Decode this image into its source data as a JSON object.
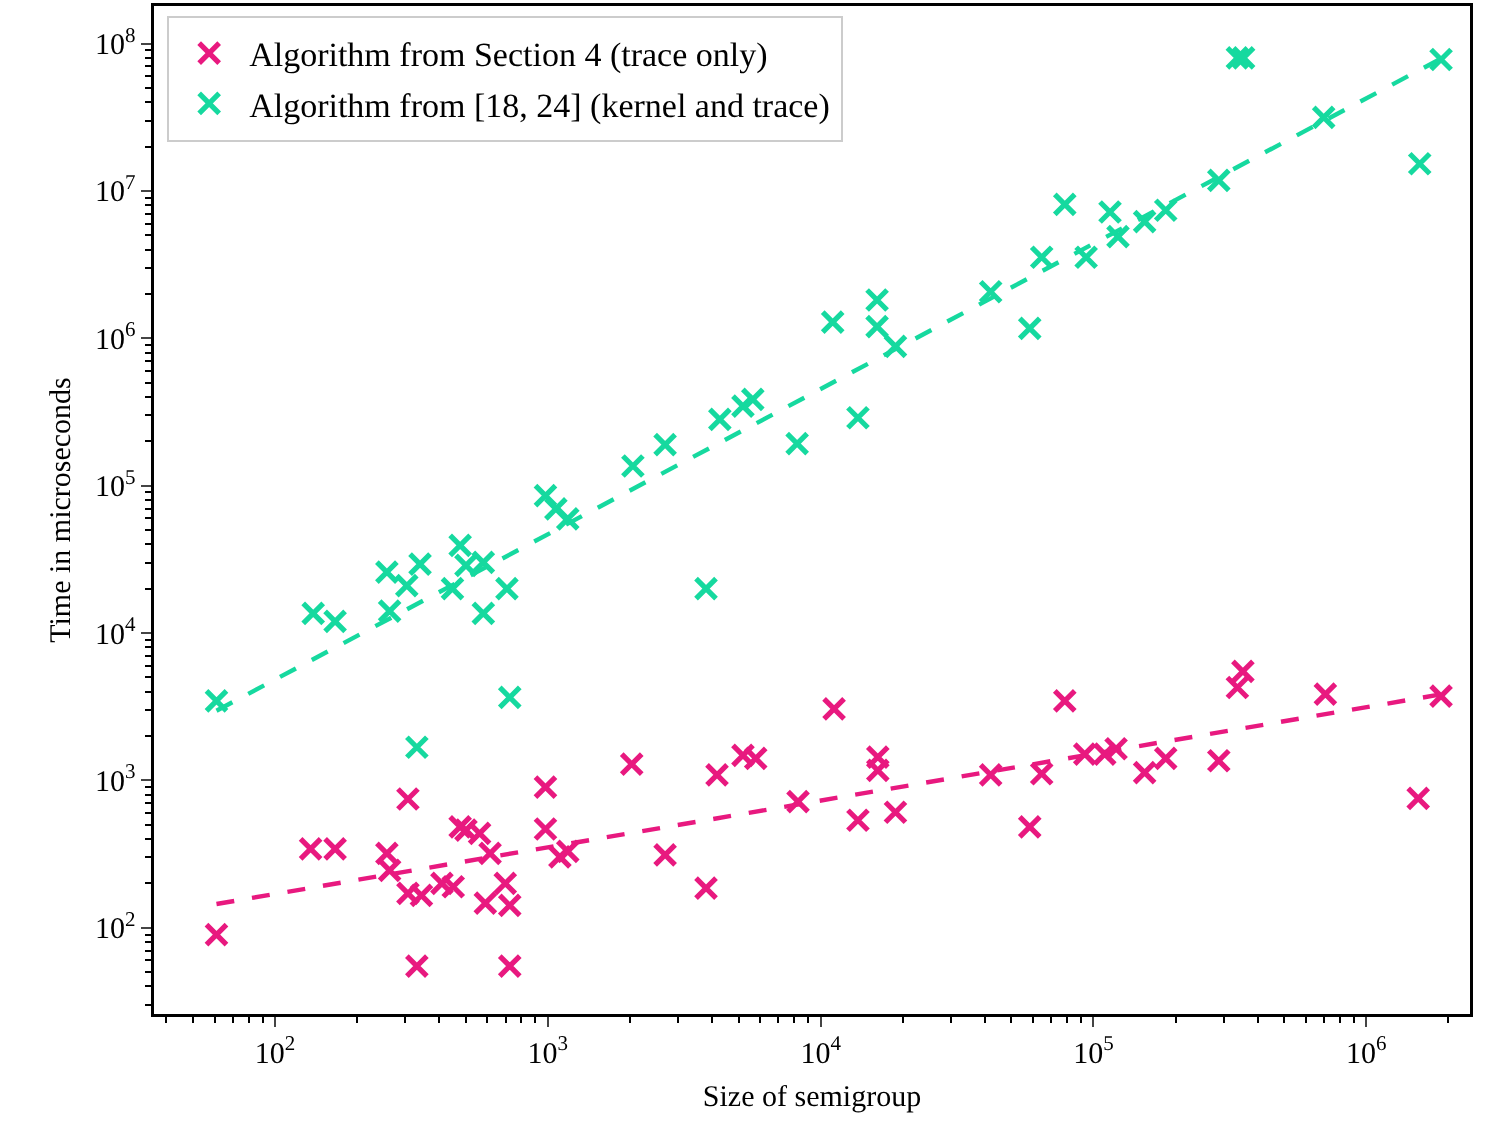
{
  "chart_data": {
    "type": "scatter",
    "xlabel": "Size of semigroup",
    "ylabel": "Time in microseconds",
    "log": "xy",
    "grid": false,
    "legend": "top left",
    "marker": "cross",
    "xlim": [
      36,
      2400000
    ],
    "ylim": [
      26,
      180000000
    ],
    "xticks": [
      {
        "value": 100,
        "label": "10$^{2}$"
      },
      {
        "value": 1000,
        "label": "10$^{3}$"
      },
      {
        "value": 10000,
        "label": "10$^{4}$"
      },
      {
        "value": 100000,
        "label": "10$^{5}$"
      },
      {
        "value": 1000000,
        "label": "10$^{6}$"
      }
    ],
    "yticks": [
      {
        "value": 100,
        "label": "10$^{2}$"
      },
      {
        "value": 1000,
        "label": "10$^{3}$"
      },
      {
        "value": 10000,
        "label": "10$^{4}$"
      },
      {
        "value": 100000,
        "label": "10$^{5}$"
      },
      {
        "value": 1000000,
        "label": "10$^{6}$"
      },
      {
        "value": 10000000,
        "label": "10$^{7}$"
      },
      {
        "value": 100000000,
        "label": "10$^{8}$"
      }
    ],
    "series": [
      {
        "name": "Algorithm from Section 4 (trace only)",
        "color": "#e8197f",
        "x": [
          61,
          135,
          166,
          257,
          263,
          307,
          307,
          344,
          331,
          409,
          450,
          477,
          501,
          562,
          614,
          590,
          698,
          725,
          725,
          980,
          980,
          1107,
          1183,
          2030,
          2690,
          3800,
          4170,
          5190,
          5780,
          8260,
          11200,
          13700,
          16200,
          16200,
          18800,
          42000,
          58400,
          64600,
          78500,
          92900,
          110000,
          121000,
          154000,
          184000,
          288000,
          337000,
          353000,
          708000,
          1550000,
          1880000
        ],
        "values": [
          90,
          343,
          343,
          320,
          245,
          748,
          171,
          166,
          55,
          200,
          190,
          484,
          460,
          437,
          320,
          147,
          200,
          142,
          55,
          901,
          468,
          303,
          330,
          1290,
          312,
          186,
          1090,
          1480,
          1410,
          718,
          3060,
          537,
          1440,
          1170,
          608,
          1090,
          484,
          1110,
          3470,
          1510,
          1510,
          1640,
          1130,
          1410,
          1360,
          4270,
          5500,
          3850,
          756,
          3730
        ]
      },
      {
        "name": "Algorithm from [18, 24] (kernel and trace)",
        "color": "#16d99f",
        "x": [
          61,
          138,
          166,
          257,
          263,
          304,
          331,
          340,
          447,
          477,
          501,
          580,
          580,
          708,
          725,
          980,
          1070,
          1183,
          2050,
          2690,
          3800,
          4270,
          5190,
          5640,
          8200,
          11070,
          13700,
          16100,
          16100,
          18800,
          42000,
          58400,
          64600,
          78500,
          94000,
          115000,
          123000,
          154000,
          184000,
          288000,
          337000,
          355000,
          698000,
          1570000,
          1880000
        ],
        "values": [
          3470,
          13600,
          12000,
          25900,
          14100,
          21000,
          1680,
          29400,
          20000,
          39400,
          28800,
          30200,
          13600,
          20000,
          3660,
          85600,
          69600,
          59600,
          136000,
          190000,
          20000,
          282000,
          347000,
          385000,
          193000,
          1290000,
          289000,
          1820000,
          1200000,
          883000,
          2070000,
          1170000,
          3550000,
          8100000,
          3550000,
          7200000,
          4900000,
          6200000,
          7400000,
          11800000,
          80000000,
          80000000,
          31600000,
          15300000,
          78000000
        ]
      },
      {
        "color": "#e8197f",
        "type": "line",
        "marker": "none",
        "line_style": "dashed",
        "x": [
          61,
          1900000
        ],
        "values": [
          145,
          3850
        ]
      },
      {
        "color": "#16d99f",
        "type": "line",
        "marker": "none",
        "line_style": "dashed",
        "x": [
          61,
          1900000
        ],
        "values": [
          2970,
          80000000
        ]
      }
    ]
  }
}
